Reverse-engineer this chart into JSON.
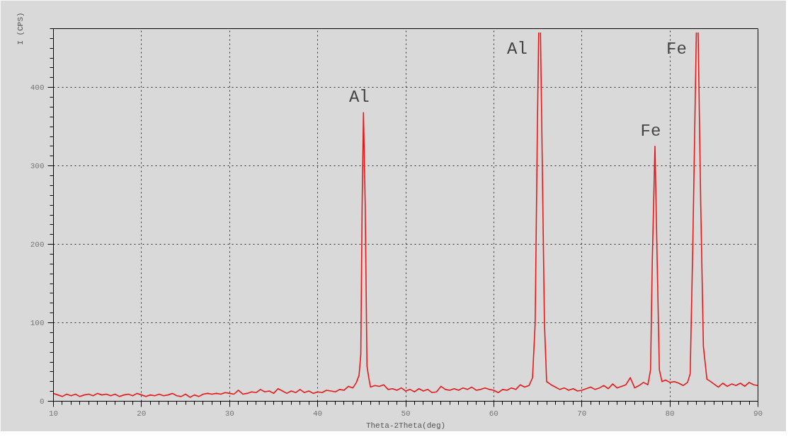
{
  "chart_data": {
    "type": "line",
    "xlabel": "Theta-2Theta(deg)",
    "ylabel": "I (CPS)",
    "xlim": [
      10,
      90
    ],
    "ylim": [
      0,
      475
    ],
    "xticks": [
      10,
      20,
      30,
      40,
      50,
      60,
      70,
      80,
      90
    ],
    "yticks": [
      0,
      100,
      200,
      300,
      400
    ],
    "grid": true,
    "marker": "none",
    "line_style": "solid",
    "annotations": [
      {
        "text": "Al",
        "x": 45.2,
        "y": 368
      },
      {
        "text": "Al",
        "x": 65.1,
        "y": 470
      },
      {
        "text": "Fe",
        "x": 78.3,
        "y": 325
      },
      {
        "text": "Fe",
        "x": 83.2,
        "y": 470
      }
    ],
    "series": [
      {
        "color": "#e41a1a",
        "x": [
          10,
          10.5,
          11,
          11.5,
          12,
          12.5,
          13,
          13.5,
          14,
          14.5,
          15,
          15.5,
          16,
          16.5,
          17,
          17.5,
          18,
          18.5,
          19,
          19.5,
          20,
          20.5,
          21,
          21.5,
          22,
          22.5,
          23,
          23.5,
          24,
          24.5,
          25,
          25.5,
          26,
          26.5,
          27,
          27.5,
          28,
          28.5,
          29,
          29.5,
          30,
          30.5,
          31,
          31.5,
          32,
          32.5,
          33,
          33.5,
          34,
          34.5,
          35,
          35.5,
          36,
          36.5,
          37,
          37.5,
          38,
          38.5,
          39,
          39.5,
          40,
          40.5,
          41,
          41.5,
          42,
          42.5,
          43,
          43.5,
          44,
          44.4,
          44.7,
          44.9,
          45.05,
          45.2,
          45.4,
          45.6,
          45.8,
          46,
          46.5,
          47,
          47.5,
          48,
          48.5,
          49,
          49.5,
          50,
          50.5,
          51,
          51.5,
          52,
          52.5,
          53,
          53.5,
          54,
          54.5,
          55,
          55.5,
          56,
          56.5,
          57,
          57.5,
          58,
          58.5,
          59,
          59.5,
          60,
          60.5,
          61,
          61.5,
          62,
          62.5,
          63,
          63.5,
          64,
          64.4,
          64.7,
          64.95,
          65.1,
          65.2,
          65.3,
          65.45,
          65.75,
          66,
          66.5,
          67,
          67.5,
          68,
          68.5,
          69,
          69.5,
          70,
          70.5,
          71,
          71.5,
          72,
          72.5,
          73,
          73.5,
          74,
          74.5,
          75,
          75.5,
          76,
          76.5,
          77,
          77.5,
          77.8,
          78,
          78.3,
          78.55,
          78.8,
          79.1,
          79.5,
          80,
          80.5,
          81,
          81.5,
          82,
          82.3,
          82.6,
          83.0,
          83.1,
          83.2,
          83.5,
          83.8,
          84.2,
          84.5,
          85,
          85.5,
          86,
          86.5,
          87,
          87.5,
          88,
          88.5,
          89,
          89.5,
          90
        ],
        "values": [
          10,
          8,
          6,
          9,
          7,
          9,
          6,
          8,
          9,
          7,
          10,
          8,
          9,
          7,
          9,
          6,
          8,
          9,
          7,
          10,
          8,
          6,
          8,
          7,
          9,
          7,
          8,
          10,
          7,
          6,
          9,
          5,
          8,
          6,
          9,
          10,
          9,
          10,
          9,
          11,
          10,
          9,
          14,
          9,
          10,
          12,
          11,
          15,
          12,
          13,
          10,
          16,
          13,
          10,
          13,
          11,
          15,
          11,
          13,
          10,
          12,
          11,
          14,
          13,
          12,
          15,
          14,
          19,
          17,
          24,
          33,
          60,
          250,
          368,
          250,
          45,
          30,
          18,
          20,
          19,
          21,
          15,
          16,
          14,
          17,
          13,
          15,
          12,
          16,
          13,
          15,
          11,
          12,
          19,
          15,
          14,
          16,
          14,
          17,
          15,
          18,
          14,
          15,
          17,
          15,
          14,
          11,
          15,
          14,
          17,
          15,
          21,
          18,
          20,
          30,
          100,
          350,
          470,
          null,
          470,
          350,
          100,
          25,
          21,
          18,
          15,
          17,
          14,
          16,
          13,
          14,
          16,
          18,
          15,
          17,
          20,
          16,
          22,
          17,
          19,
          21,
          30,
          17,
          20,
          24,
          21,
          40,
          180,
          325,
          180,
          40,
          25,
          27,
          24,
          25,
          23,
          20,
          24,
          35,
          200,
          470,
          null,
          470,
          250,
          70,
          28,
          26,
          22,
          18,
          23,
          19,
          22,
          20,
          23,
          19,
          24,
          21,
          20
        ]
      }
    ]
  }
}
